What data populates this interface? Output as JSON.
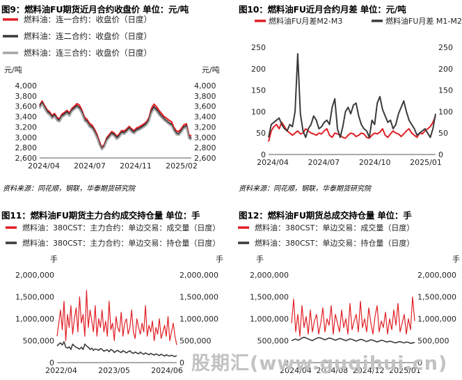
{
  "watermark": "股期汇(www.guqihui.cn)",
  "source_note": "资料来源：同花顺，钢联，华泰期货研究院",
  "chart_data": [
    {
      "id": "fig9",
      "type": "line",
      "title": "图9：燃料油FU期货近月合约收盘价 单位：元/吨",
      "unit_left": "元/吨",
      "unit_right": "元/吨",
      "ylim": [
        2600,
        4000
      ],
      "yticks": [
        "2,600",
        "2,800",
        "3,000",
        "3,200",
        "3,400",
        "3,600",
        "3,800",
        "4,000"
      ],
      "xticks": [
        "2024/04",
        "2024/07",
        "2024/11",
        "2025/02"
      ],
      "legend": "top-left",
      "series": [
        {
          "name": "燃料油：连一合约：收盘价（日度）",
          "color": "#e01e24",
          "width": 2.2,
          "values": [
            3620,
            3700,
            3610,
            3530,
            3490,
            3420,
            3460,
            3380,
            3360,
            3450,
            3480,
            3520,
            3470,
            3560,
            3600,
            3650,
            3620,
            3520,
            3390,
            3350,
            3270,
            3240,
            3160,
            3060,
            2920,
            2800,
            2860,
            2990,
            3050,
            3110,
            3080,
            3020,
            3060,
            3130,
            3120,
            3160,
            3210,
            3160,
            3130,
            3180,
            3200,
            3230,
            3260,
            3300,
            3380,
            3560,
            3640,
            3590,
            3520,
            3460,
            3400,
            3370,
            3330,
            3300,
            3190,
            3120,
            3110,
            3170,
            3240,
            3260,
            3050,
            3020
          ]
        },
        {
          "name": "燃料油：连二合约：收盘价（日度）",
          "color": "#3a3a3a",
          "width": 2.2,
          "values": [
            3590,
            3670,
            3580,
            3500,
            3460,
            3390,
            3430,
            3350,
            3330,
            3420,
            3450,
            3490,
            3440,
            3530,
            3570,
            3610,
            3570,
            3480,
            3350,
            3310,
            3230,
            3200,
            3120,
            3020,
            2880,
            2780,
            2830,
            2960,
            3020,
            3080,
            3050,
            2990,
            3030,
            3100,
            3090,
            3130,
            3180,
            3130,
            3100,
            3150,
            3170,
            3200,
            3230,
            3270,
            3340,
            3510,
            3590,
            3540,
            3470,
            3410,
            3360,
            3320,
            3280,
            3250,
            3150,
            3080,
            3070,
            3130,
            3200,
            3220,
            3010,
            2980
          ]
        },
        {
          "name": "燃料油：连三合约：收盘价（日度）",
          "color": "#a5a5a5",
          "width": 2.2,
          "values": [
            3560,
            3640,
            3550,
            3470,
            3430,
            3360,
            3400,
            3320,
            3300,
            3390,
            3420,
            3460,
            3410,
            3500,
            3540,
            3580,
            3540,
            3450,
            3320,
            3280,
            3200,
            3170,
            3090,
            2990,
            2850,
            2760,
            2810,
            2930,
            2990,
            3050,
            3020,
            2960,
            3000,
            3070,
            3060,
            3100,
            3150,
            3100,
            3070,
            3120,
            3140,
            3170,
            3200,
            3240,
            3310,
            3470,
            3550,
            3500,
            3430,
            3380,
            3330,
            3290,
            3250,
            3220,
            3120,
            3050,
            3040,
            3100,
            3170,
            3190,
            2980,
            2950
          ]
        }
      ]
    },
    {
      "id": "fig10",
      "type": "line",
      "title": "图10：燃料油FU近月合约月差 单位：元/吨",
      "ylim": [
        0,
        250
      ],
      "yticks": [
        "0",
        "50",
        "100",
        "150",
        "200",
        "250"
      ],
      "xticks": [
        "2024/04",
        "2024/07",
        "2024/10",
        "2025/01"
      ],
      "legend": "top",
      "series": [
        {
          "name": "燃料油FU月差M2-M3",
          "color": "#e01e24",
          "width": 2,
          "axis": "left",
          "values": [
            30,
            55,
            65,
            70,
            60,
            75,
            65,
            55,
            50,
            45,
            50,
            55,
            48,
            50,
            60,
            55,
            50,
            48,
            45,
            50,
            48,
            55,
            60,
            45,
            40,
            50,
            48,
            45,
            40,
            38,
            45,
            50,
            48,
            42,
            45,
            50,
            48,
            40,
            38,
            45,
            50,
            48,
            52,
            60,
            45,
            40,
            48,
            55,
            50,
            48,
            42,
            48,
            55,
            60,
            50,
            45,
            40,
            50,
            48,
            55,
            60,
            65,
            75,
            90
          ]
        },
        {
          "name": "燃料油FU月差 M1-M2",
          "color": "#3a3a3a",
          "width": 2,
          "axis": "right",
          "values": [
            40,
            70,
            75,
            80,
            85,
            70,
            60,
            55,
            70,
            65,
            100,
            235,
            95,
            55,
            40,
            60,
            70,
            90,
            80,
            60,
            65,
            75,
            80,
            70,
            110,
            130,
            60,
            40,
            65,
            100,
            110,
            95,
            115,
            120,
            90,
            70,
            60,
            55,
            40,
            80,
            70,
            120,
            135,
            105,
            90,
            75,
            80,
            60,
            70,
            95,
            110,
            125,
            100,
            80,
            70,
            60,
            45,
            50,
            55,
            60,
            50,
            40,
            60,
            95
          ]
        }
      ]
    },
    {
      "id": "fig11",
      "type": "line",
      "title": "图11：燃料油FU期货主力合约成交持仓量 单位：手",
      "unit_left": "手",
      "unit_right": "手",
      "ylim": [
        0,
        2000000
      ],
      "yticks": [
        "0",
        "500,000",
        "1,000,000",
        "1,500,000",
        "2,000,000"
      ],
      "xticks": [
        "2022/04",
        "2023/05",
        "2024/06"
      ],
      "legend": "top",
      "series": [
        {
          "name": "燃料油：380CST：主力合约：单边交易：成交量（日度）",
          "color": "#e01e24",
          "width": 1.2,
          "values": [
            600000,
            900000,
            1200000,
            750000,
            1400000,
            500000,
            1100000,
            800000,
            1300000,
            650000,
            1000000,
            1250000,
            700000,
            1500000,
            900000,
            1100000,
            600000,
            1650000,
            800000,
            1200000,
            950000,
            700000,
            1300000,
            600000,
            1000000,
            800000,
            1200000,
            700000,
            950000,
            600000,
            1400000,
            750000,
            900000,
            500000,
            1050000,
            800000,
            700000,
            1150000,
            600000,
            900000,
            1000000,
            650000,
            800000,
            1200000,
            700000,
            550000,
            1000000,
            800000,
            650000,
            900000,
            700000,
            1300000,
            600000,
            850000,
            700000,
            950000,
            500000,
            800000,
            650000,
            1000000,
            550000,
            700000,
            850000,
            600000,
            1050000,
            500000,
            700000,
            900000,
            600000,
            400000
          ]
        },
        {
          "name": "燃料油：380CST：主力合约：单边交易：持仓量（日度）",
          "color": "#3a3a3a",
          "width": 1.6,
          "values": [
            380000,
            420000,
            450000,
            400000,
            480000,
            350000,
            330000,
            360000,
            300000,
            420000,
            380000,
            350000,
            330000,
            310000,
            350000,
            300000,
            420000,
            380000,
            350000,
            300000,
            330000,
            280000,
            310000,
            300000,
            280000,
            320000,
            300000,
            260000,
            280000,
            290000,
            250000,
            300000,
            280000,
            230000,
            260000,
            280000,
            250000,
            230000,
            270000,
            250000,
            220000,
            250000,
            270000,
            230000,
            210000,
            240000,
            220000,
            200000,
            240000,
            210000,
            190000,
            220000,
            200000,
            180000,
            210000,
            190000,
            170000,
            200000,
            180000,
            160000,
            190000,
            170000,
            150000,
            180000,
            160000,
            150000,
            170000,
            150000,
            140000,
            160000
          ]
        }
      ]
    },
    {
      "id": "fig12",
      "type": "line",
      "title": "图12：燃料油FU期货总成交持仓量 单位：手",
      "unit_left": "手",
      "unit_right": "手",
      "ylim": [
        0,
        2000000
      ],
      "yticks": [
        "0",
        "500,000",
        "1,000,000",
        "1,500,000",
        "2,000,000"
      ],
      "xticks": [
        "2024/04",
        "2024/08",
        "2024/12",
        "2025/01"
      ],
      "legend": "top",
      "series": [
        {
          "name": "燃料油：380CST：单边交易：成交量（日度）",
          "color": "#e01e24",
          "width": 1.2,
          "values": [
            900000,
            1450000,
            700000,
            1100000,
            600000,
            1300000,
            800000,
            1050000,
            650000,
            1200000,
            700000,
            950000,
            1100000,
            650000,
            900000,
            1250000,
            700000,
            1000000,
            850000,
            1300000,
            650000,
            1100000,
            900000,
            700000,
            1200000,
            800000,
            1000000,
            650000,
            1350000,
            750000,
            950000,
            1100000,
            700000,
            1400000,
            800000,
            1000000,
            700000,
            1250000,
            900000,
            650000,
            1050000,
            1300000,
            700000,
            950000,
            800000,
            1150000,
            650000,
            1000000,
            750000,
            1200000,
            850000,
            1350000,
            700000,
            900000,
            1100000,
            650000,
            1000000,
            750000,
            1500000,
            950000
          ]
        },
        {
          "name": "燃料油：380CST：单边交易：持仓量（日度）",
          "color": "#3a3a3a",
          "width": 1.6,
          "values": [
            500000,
            520000,
            540000,
            510000,
            530000,
            560000,
            580000,
            560000,
            540000,
            520000,
            500000,
            530000,
            550000,
            570000,
            560000,
            540000,
            520000,
            540000,
            560000,
            550000,
            530000,
            510000,
            530000,
            550000,
            540000,
            520000,
            500000,
            520000,
            540000,
            530000,
            510000,
            490000,
            510000,
            530000,
            520000,
            500000,
            480000,
            500000,
            520000,
            510000,
            490000,
            470000,
            490000,
            510000,
            500000,
            480000,
            470000,
            490000,
            480000,
            460000,
            450000,
            470000,
            480000,
            460000,
            450000,
            470000,
            460000,
            440000,
            450000,
            460000
          ]
        }
      ]
    }
  ]
}
